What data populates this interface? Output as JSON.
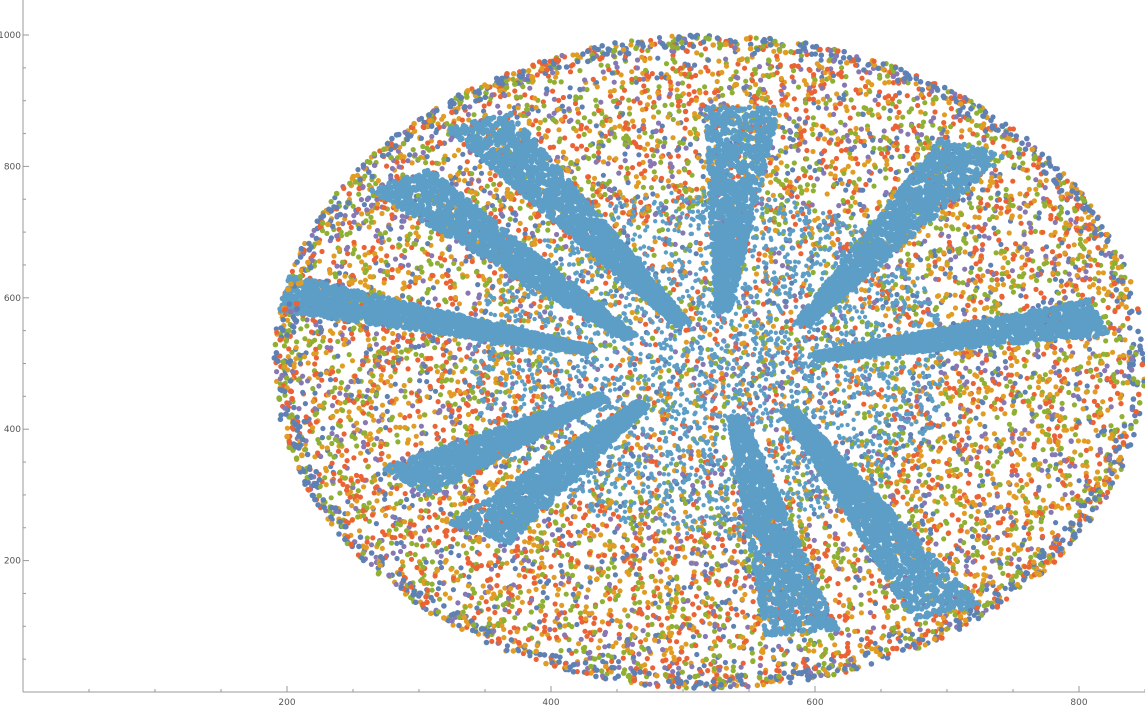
{
  "chart_data": {
    "type": "scatter",
    "title": "",
    "xlabel": "",
    "ylabel": "",
    "xlim": [
      0,
      850
    ],
    "ylim": [
      0,
      1000
    ],
    "x_ticks": [
      {
        "value": 200,
        "label": "200"
      },
      {
        "value": 400,
        "label": "400"
      },
      {
        "value": 600,
        "label": "600"
      },
      {
        "value": 800,
        "label": "800"
      }
    ],
    "y_ticks": [
      {
        "value": 200,
        "label": "200"
      },
      {
        "value": 400,
        "label": "400"
      },
      {
        "value": 600,
        "label": "600"
      },
      {
        "value": 800,
        "label": "800"
      },
      {
        "value": 1000,
        "label": "1000"
      }
    ],
    "grid": false,
    "legend": "none",
    "colors": [
      "#5e81b5",
      "#e19c24",
      "#8fb032",
      "#eb6235",
      "#8778b3",
      "#5d9ec7"
    ],
    "cloud": {
      "center": [
        520,
        500
      ],
      "x_extent": [
        175,
        835
      ],
      "y_extent": [
        5,
        1000
      ],
      "arms": [
        {
          "from": [
            345,
            870
          ],
          "to": [
            500,
            560
          ]
        },
        {
          "from": [
            285,
            780
          ],
          "to": [
            460,
            540
          ]
        },
        {
          "from": [
            190,
            610
          ],
          "to": [
            430,
            520
          ]
        },
        {
          "from": [
            290,
            320
          ],
          "to": [
            440,
            450
          ]
        },
        {
          "from": [
            345,
            240
          ],
          "to": [
            470,
            440
          ]
        },
        {
          "from": [
            590,
            90
          ],
          "to": [
            540,
            420
          ]
        },
        {
          "from": [
            700,
            120
          ],
          "to": [
            580,
            430
          ]
        },
        {
          "from": [
            815,
            570
          ],
          "to": [
            600,
            510
          ]
        },
        {
          "from": [
            720,
            830
          ],
          "to": [
            590,
            560
          ]
        },
        {
          "from": [
            545,
            890
          ],
          "to": [
            530,
            580
          ]
        }
      ]
    }
  }
}
